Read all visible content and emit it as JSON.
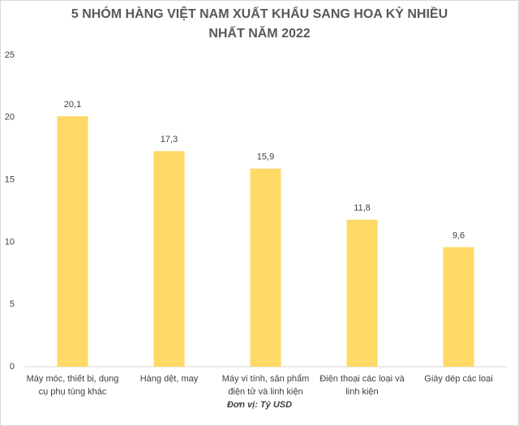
{
  "chart_data": {
    "type": "bar",
    "title": "5 NHÓM HÀNG VIỆT NAM XUẤT KHẨU SANG HOA KỲ NHIỀU NHẤT NĂM 2022",
    "x_label": "Đơn vị: Tỷ USD",
    "categories": [
      "Máy móc, thiết bị, dụng cụ phụ tùng khác",
      "Hàng dệt, may",
      "Máy vi tính, sản phẩm điện tử và linh kiện",
      "Điện thoại các loại và linh kiện",
      "Giày dép các loại"
    ],
    "values": [
      20.1,
      17.3,
      15.9,
      11.8,
      9.6
    ],
    "value_labels": [
      "20,1",
      "17,3",
      "15,9",
      "11,8",
      "9,6"
    ],
    "color": "#ffd966",
    "ylim": [
      0,
      25
    ],
    "yticks": [
      0,
      5,
      10,
      15,
      20,
      25
    ],
    "grid": false
  }
}
